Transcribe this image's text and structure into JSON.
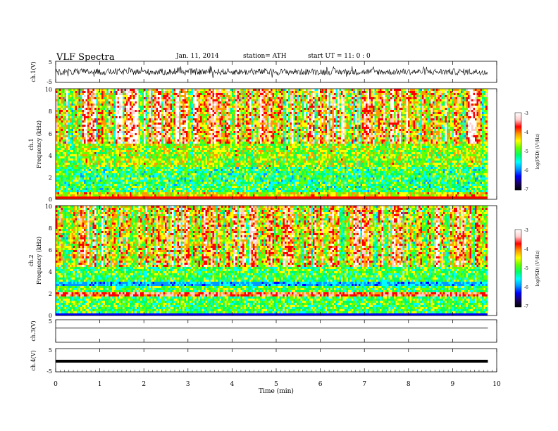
{
  "header": {
    "title": "VLF  Spectra",
    "date": "Jan. 11, 2014",
    "station": "station= ATH",
    "start": "start  UT  =   11: 0  : 0"
  },
  "chart_data": [
    {
      "type": "line",
      "panel": "ch1-waveform",
      "ylabel": "ch.1(V)",
      "ylim": [
        -5,
        5
      ],
      "yticks": [
        "5",
        "-5"
      ],
      "xlim": [
        0,
        10
      ],
      "approx_level": 0,
      "approx_amplitude": 1.5
    },
    {
      "type": "heatmap",
      "panel": "ch1-spectrogram",
      "ylabel": [
        "ch.1",
        "Frequency  (kHz)"
      ],
      "ylim": [
        0,
        10
      ],
      "yticks": [
        "0",
        "2",
        "4",
        "6",
        "8",
        "10"
      ],
      "xlim": [
        0,
        10
      ],
      "data_end_min": 9.8,
      "colorbar": {
        "label": "log(PSD) (V²/Hz)",
        "ticks": [
          "-3",
          "-4",
          "-5",
          "-6",
          "-7"
        ],
        "range": [
          -7,
          -3
        ]
      }
    },
    {
      "type": "heatmap",
      "panel": "ch2-spectrogram",
      "ylabel": [
        "ch.2",
        "Frequency  (kHz)"
      ],
      "ylim": [
        0,
        10
      ],
      "yticks": [
        "0",
        "2",
        "4",
        "6",
        "8",
        "10"
      ],
      "xlim": [
        0,
        10
      ],
      "data_end_min": 9.8,
      "colorbar": {
        "label": "log(PSD) (V²/Hz)",
        "ticks": [
          "-3",
          "-4",
          "-5",
          "-6",
          "-7"
        ],
        "range": [
          -7,
          -3
        ]
      }
    },
    {
      "type": "line",
      "panel": "ch3-waveform",
      "ylabel": "ch.3(V)",
      "ylim": [
        -5,
        5
      ],
      "yticks": [
        "5"
      ],
      "xlim": [
        0,
        10
      ],
      "approx_level": 1.3
    },
    {
      "type": "line",
      "panel": "ch4-waveform",
      "ylabel": "ch.4(V)",
      "ylim": [
        -5,
        5
      ],
      "yticks": [
        "5",
        "-5"
      ],
      "xlim": [
        0,
        10
      ],
      "approx_level": -0.4
    }
  ],
  "x_axis": {
    "label": "Time  (min)",
    "ticks": [
      "0",
      "1",
      "2",
      "3",
      "4",
      "5",
      "6",
      "7",
      "8",
      "9",
      "10"
    ]
  },
  "colorscale": [
    "#000000",
    "#1a0066",
    "#0000ff",
    "#0099ff",
    "#00ffff",
    "#00ff66",
    "#66ff00",
    "#ffff00",
    "#ff9900",
    "#ff0000",
    "#ffcccc",
    "#ffffff"
  ]
}
